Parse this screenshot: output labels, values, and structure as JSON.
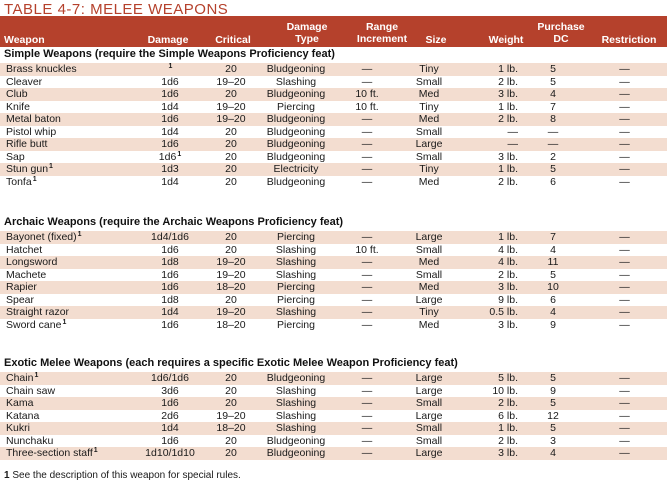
{
  "title": "TABLE 4-7: MELEE WEAPONS",
  "headers": {
    "weapon": "Weapon",
    "damage": "Damage",
    "critical": "Critical",
    "damage_type_1": "Damage",
    "damage_type_2": "Type",
    "range_1": "Range",
    "range_2": "Increment",
    "size": "Size",
    "weight": "Weight",
    "purchase_1": "Purchase",
    "purchase_2": "DC",
    "restriction": "Restriction"
  },
  "sections": [
    {
      "title": "Simple Weapons (require the Simple Weapons Proficiency feat)",
      "rows": [
        {
          "weapon": "Brass knuckles",
          "wfn": "",
          "damage": "",
          "dfn": "1",
          "critical": "20",
          "type": "Bludgeoning",
          "range": "—",
          "size": "Tiny",
          "weight": "1 lb.",
          "dc": "5",
          "restriction": "—"
        },
        {
          "weapon": "Cleaver",
          "wfn": "",
          "damage": "1d6",
          "dfn": "",
          "critical": "19–20",
          "type": "Slashing",
          "range": "—",
          "size": "Small",
          "weight": "2 lb.",
          "dc": "5",
          "restriction": "—"
        },
        {
          "weapon": "Club",
          "wfn": "",
          "damage": "1d6",
          "dfn": "",
          "critical": "20",
          "type": "Bludgeoning",
          "range": "10 ft.",
          "size": "Med",
          "weight": "3 lb.",
          "dc": "4",
          "restriction": "—"
        },
        {
          "weapon": "Knife",
          "wfn": "",
          "damage": "1d4",
          "dfn": "",
          "critical": "19–20",
          "type": "Piercing",
          "range": "10 ft.",
          "size": "Tiny",
          "weight": "1 lb.",
          "dc": "7",
          "restriction": "—"
        },
        {
          "weapon": "Metal baton",
          "wfn": "",
          "damage": "1d6",
          "dfn": "",
          "critical": "19–20",
          "type": "Bludgeoning",
          "range": "—",
          "size": "Med",
          "weight": "2 lb.",
          "dc": "8",
          "restriction": "—"
        },
        {
          "weapon": "Pistol whip",
          "wfn": "",
          "damage": "1d4",
          "dfn": "",
          "critical": "20",
          "type": "Bludgeoning",
          "range": "—",
          "size": "Small",
          "weight": "—",
          "dc": "—",
          "restriction": "—"
        },
        {
          "weapon": "Rifle butt",
          "wfn": "",
          "damage": "1d6",
          "dfn": "",
          "critical": "20",
          "type": "Bludgeoning",
          "range": "—",
          "size": "Large",
          "weight": "—",
          "dc": "—",
          "restriction": "—"
        },
        {
          "weapon": "Sap",
          "wfn": "",
          "damage": "1d6",
          "dfn": "1",
          "critical": "20",
          "type": "Bludgeoning",
          "range": "—",
          "size": "Small",
          "weight": "3 lb.",
          "dc": "2",
          "restriction": "—"
        },
        {
          "weapon": "Stun gun",
          "wfn": "1",
          "damage": "1d3",
          "dfn": "",
          "critical": "20",
          "type": "Electricity",
          "range": "—",
          "size": "Tiny",
          "weight": "1 lb.",
          "dc": "5",
          "restriction": "—"
        },
        {
          "weapon": "Tonfa",
          "wfn": "1",
          "damage": "1d4",
          "dfn": "",
          "critical": "20",
          "type": "Bludgeoning",
          "range": "—",
          "size": "Med",
          "weight": "2 lb.",
          "dc": "6",
          "restriction": "—"
        }
      ]
    },
    {
      "title": "Archaic Weapons (require the Archaic Weapons Proficiency feat)",
      "rows": [
        {
          "weapon": "Bayonet (fixed)",
          "wfn": "1",
          "damage": "1d4/1d6",
          "dfn": "",
          "critical": "20",
          "type": "Piercing",
          "range": "—",
          "size": "Large",
          "weight": "1 lb.",
          "dc": "7",
          "restriction": "—"
        },
        {
          "weapon": "Hatchet",
          "wfn": "",
          "damage": "1d6",
          "dfn": "",
          "critical": "20",
          "type": "Slashing",
          "range": "10 ft.",
          "size": "Small",
          "weight": "4 lb.",
          "dc": "4",
          "restriction": "—"
        },
        {
          "weapon": "Longsword",
          "wfn": "",
          "damage": "1d8",
          "dfn": "",
          "critical": "19–20",
          "type": "Slashing",
          "range": "—",
          "size": "Med",
          "weight": "4 lb.",
          "dc": "11",
          "restriction": "—"
        },
        {
          "weapon": "Machete",
          "wfn": "",
          "damage": "1d6",
          "dfn": "",
          "critical": "19–20",
          "type": "Slashing",
          "range": "—",
          "size": "Small",
          "weight": "2 lb.",
          "dc": "5",
          "restriction": "—"
        },
        {
          "weapon": "Rapier",
          "wfn": "",
          "damage": "1d6",
          "dfn": "",
          "critical": "18–20",
          "type": "Piercing",
          "range": "—",
          "size": "Med",
          "weight": "3 lb.",
          "dc": "10",
          "restriction": "—"
        },
        {
          "weapon": "Spear",
          "wfn": "",
          "damage": "1d8",
          "dfn": "",
          "critical": "20",
          "type": "Piercing",
          "range": "—",
          "size": "Large",
          "weight": "9 lb.",
          "dc": "6",
          "restriction": "—"
        },
        {
          "weapon": "Straight razor",
          "wfn": "",
          "damage": "1d4",
          "dfn": "",
          "critical": "19–20",
          "type": "Slashing",
          "range": "—",
          "size": "Tiny",
          "weight": "0.5 lb.",
          "dc": "4",
          "restriction": "—"
        },
        {
          "weapon": "Sword cane",
          "wfn": "1",
          "damage": "1d6",
          "dfn": "",
          "critical": "18–20",
          "type": "Piercing",
          "range": "—",
          "size": "Med",
          "weight": "3 lb.",
          "dc": "9",
          "restriction": "—"
        }
      ]
    },
    {
      "title": "Exotic Melee Weapons (each requires a specific Exotic Melee Weapon Proficiency feat)",
      "rows": [
        {
          "weapon": "Chain",
          "wfn": "1",
          "damage": "1d6/1d6",
          "dfn": "",
          "critical": "20",
          "type": "Bludgeoning",
          "range": "—",
          "size": "Large",
          "weight": "5 lb.",
          "dc": "5",
          "restriction": "—"
        },
        {
          "weapon": "Chain saw",
          "wfn": "",
          "damage": "3d6",
          "dfn": "",
          "critical": "20",
          "type": "Slashing",
          "range": "—",
          "size": "Large",
          "weight": "10 lb.",
          "dc": "9",
          "restriction": "—"
        },
        {
          "weapon": "Kama",
          "wfn": "",
          "damage": "1d6",
          "dfn": "",
          "critical": "20",
          "type": "Slashing",
          "range": "—",
          "size": "Small",
          "weight": "2 lb.",
          "dc": "5",
          "restriction": "—"
        },
        {
          "weapon": "Katana",
          "wfn": "",
          "damage": "2d6",
          "dfn": "",
          "critical": "19–20",
          "type": "Slashing",
          "range": "—",
          "size": "Large",
          "weight": "6 lb.",
          "dc": "12",
          "restriction": "—"
        },
        {
          "weapon": "Kukri",
          "wfn": "",
          "damage": "1d4",
          "dfn": "",
          "critical": "18–20",
          "type": "Slashing",
          "range": "—",
          "size": "Small",
          "weight": "1 lb.",
          "dc": "5",
          "restriction": "—"
        },
        {
          "weapon": "Nunchaku",
          "wfn": "",
          "damage": "1d6",
          "dfn": "",
          "critical": "20",
          "type": "Bludgeoning",
          "range": "—",
          "size": "Small",
          "weight": "2 lb.",
          "dc": "3",
          "restriction": "—"
        },
        {
          "weapon": "Three-section staff",
          "wfn": "1",
          "damage": "1d10/1d10",
          "dfn": "",
          "critical": "20",
          "type": "Bludgeoning",
          "range": "—",
          "size": "Large",
          "weight": "3 lb.",
          "dc": "4",
          "restriction": "—"
        }
      ]
    }
  ],
  "footnote": {
    "mark": "1",
    "text": "See the description of this weapon for special rules."
  },
  "colors": {
    "accent": "#b5412c",
    "stripe": "#f3ddd0"
  }
}
